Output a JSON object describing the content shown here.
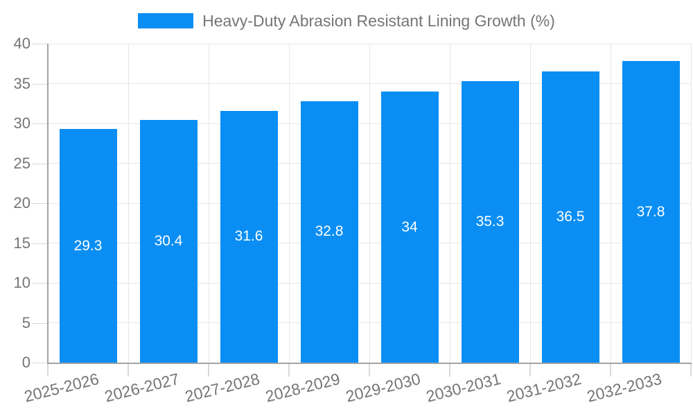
{
  "chart_data": {
    "type": "bar",
    "title": "Heavy-Duty Abrasion Resistant Lining Growth (%)",
    "legend": {
      "label": "Heavy-Duty Abrasion Resistant Lining Growth (%)",
      "position": "top-center"
    },
    "categories": [
      "2025-2026",
      "2026-2027",
      "2027-2028",
      "2028-2029",
      "2029-2030",
      "2030-2031",
      "2031-2032",
      "2032-2033"
    ],
    "series": [
      {
        "name": "Heavy-Duty Abrasion Resistant Lining Growth (%)",
        "values": [
          29.3,
          30.4,
          31.6,
          32.8,
          34,
          35.3,
          36.5,
          37.8
        ]
      }
    ],
    "value_labels": [
      "29.3",
      "30.4",
      "31.6",
      "32.8",
      "34",
      "35.3",
      "36.5",
      "37.8"
    ],
    "xlabel": "",
    "ylabel": "",
    "ylim": [
      0,
      40
    ],
    "y_ticks": [
      0,
      5,
      10,
      15,
      20,
      25,
      30,
      35,
      40
    ],
    "grid": true,
    "colors": {
      "bar": "#0A8EF4",
      "gridline": "#E6E6E6",
      "axis_line": "#A3A3A3",
      "tick": "#D9D9D9",
      "axis_label": "#757575",
      "value_label": "#FFFFFF",
      "background": "#FFFFFF"
    }
  }
}
